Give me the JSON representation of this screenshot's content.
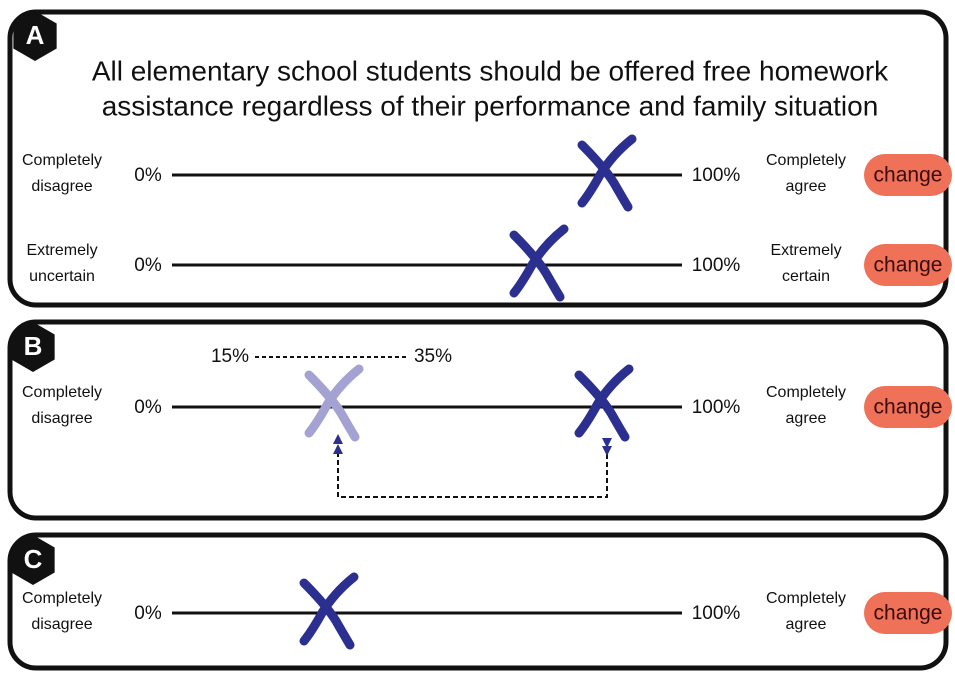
{
  "panels": [
    {
      "badge": "A",
      "statement": [
        "All elementary school students should be offered free homework",
        "assistance regardless of their performance and family situation"
      ],
      "scales": [
        {
          "left_label": [
            "Completely",
            "disagree"
          ],
          "min": "0%",
          "max": "100%",
          "right_label": [
            "Completely",
            "agree"
          ],
          "button": "change"
        },
        {
          "left_label": [
            "Extremely",
            "uncertain"
          ],
          "min": "0%",
          "max": "100%",
          "right_label": [
            "Extremely",
            "certain"
          ],
          "button": "change"
        }
      ]
    },
    {
      "badge": "B",
      "range": [
        "15%",
        "35%"
      ],
      "scales": [
        {
          "left_label": [
            "Completely",
            "disagree"
          ],
          "min": "0%",
          "max": "100%",
          "right_label": [
            "Completely",
            "agree"
          ],
          "button": "change"
        }
      ]
    },
    {
      "badge": "C",
      "scales": [
        {
          "left_label": [
            "Completely",
            "disagree"
          ],
          "min": "0%",
          "max": "100%",
          "right_label": [
            "Completely",
            "agree"
          ],
          "button": "change"
        }
      ]
    }
  ]
}
